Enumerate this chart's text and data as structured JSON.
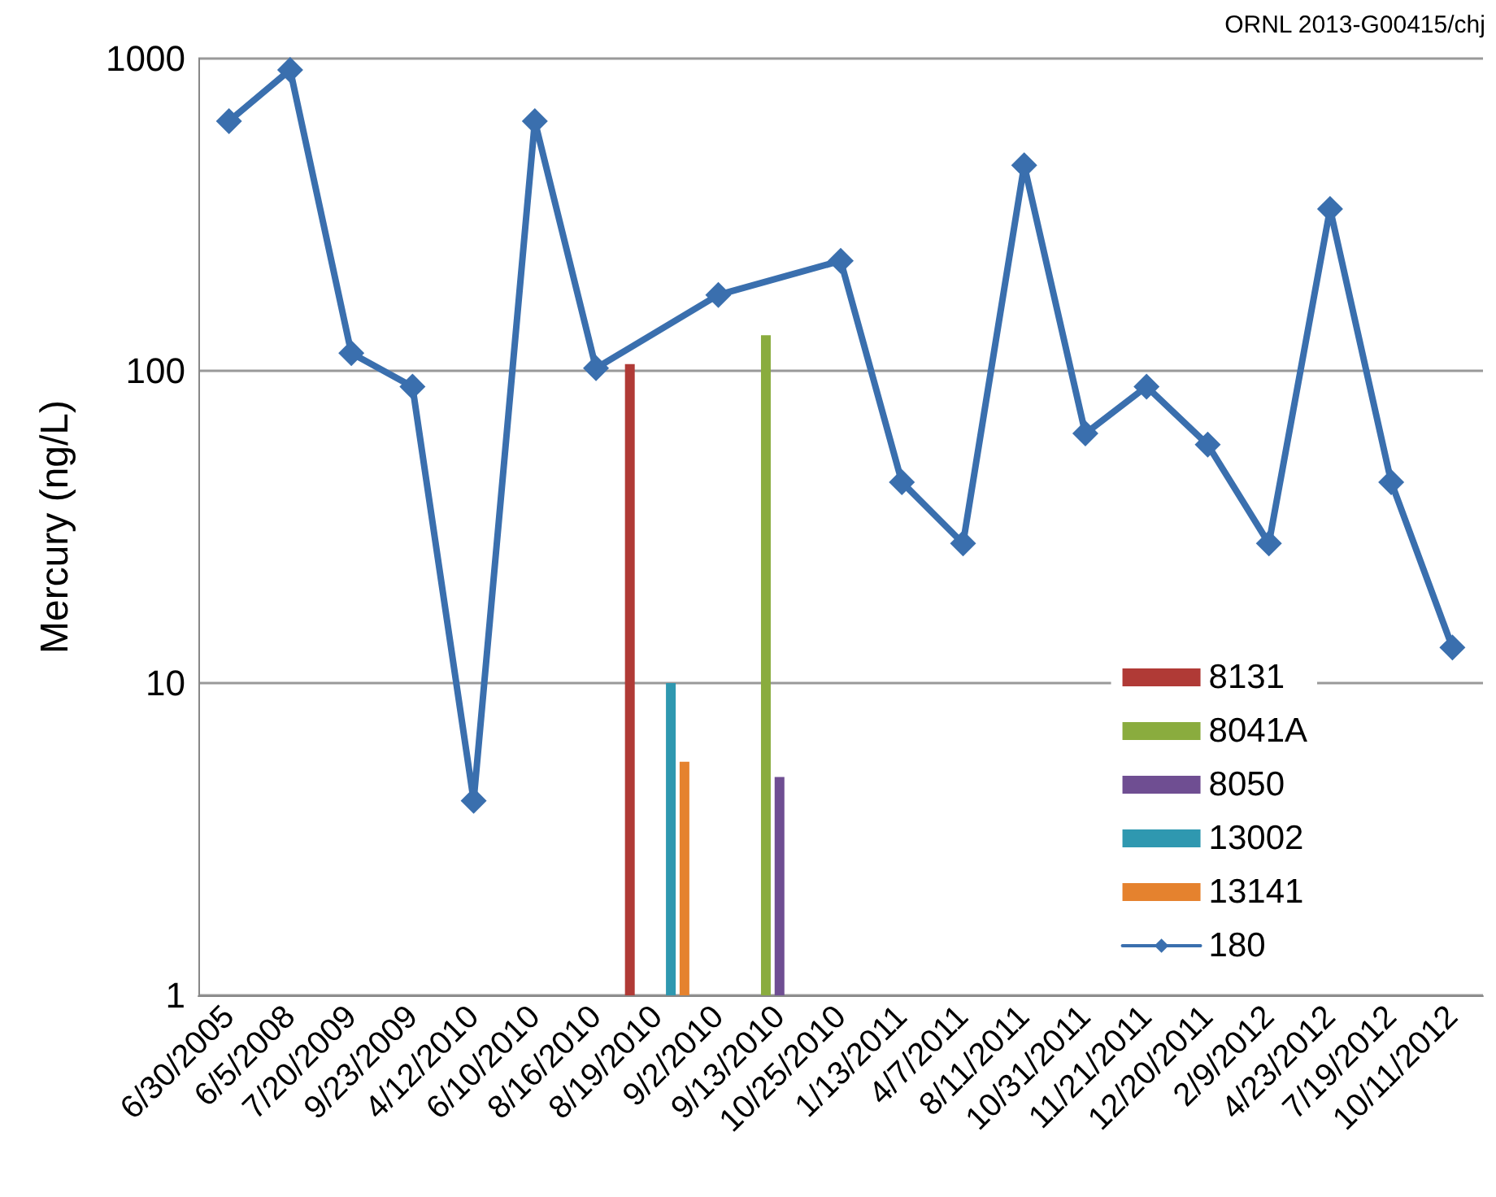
{
  "chart_data": {
    "type": "line",
    "ylabel": "Mercury (ng/L)",
    "annotations": [
      "ORNL 2013-G00415/chj"
    ],
    "categories": [
      "6/30/2005",
      "6/5/2008",
      "7/20/2009",
      "9/23/2009",
      "4/12/2010",
      "6/10/2010",
      "8/16/2010",
      "8/19/2010",
      "9/2/2010",
      "9/13/2010",
      "10/25/2010",
      "1/13/2011",
      "4/7/2011",
      "8/11/2011",
      "10/31/2011",
      "11/21/2011",
      "12/20/2011",
      "2/9/2012",
      "4/23/2012",
      "7/19/2012",
      "10/11/2012"
    ],
    "series": [
      {
        "name": "8131",
        "type": "bar",
        "color": "#b03a36",
        "values": [
          null,
          null,
          null,
          null,
          null,
          null,
          null,
          105,
          null,
          null,
          null,
          null,
          null,
          null,
          null,
          null,
          null,
          null,
          null,
          null,
          null
        ]
      },
      {
        "name": "8041A",
        "type": "bar",
        "color": "#8aac3e",
        "values": [
          null,
          null,
          null,
          null,
          null,
          null,
          null,
          null,
          null,
          130,
          null,
          null,
          null,
          null,
          null,
          null,
          null,
          null,
          null,
          null,
          null
        ]
      },
      {
        "name": "8050",
        "type": "bar",
        "color": "#6f4e92",
        "values": [
          null,
          null,
          null,
          null,
          null,
          null,
          null,
          null,
          null,
          5.0,
          null,
          null,
          null,
          null,
          null,
          null,
          null,
          null,
          null,
          null,
          null
        ]
      },
      {
        "name": "13002",
        "type": "bar",
        "color": "#2f98b0",
        "values": [
          null,
          null,
          null,
          null,
          null,
          null,
          null,
          10,
          null,
          null,
          null,
          null,
          null,
          null,
          null,
          null,
          null,
          null,
          null,
          null,
          null
        ]
      },
      {
        "name": "13141",
        "type": "bar",
        "color": "#e5822e",
        "values": [
          null,
          null,
          null,
          null,
          null,
          null,
          null,
          5.6,
          null,
          null,
          null,
          null,
          null,
          null,
          null,
          null,
          null,
          null,
          null,
          null,
          null
        ]
      },
      {
        "name": "180",
        "color": "#3a6fae",
        "values": [
          630,
          920,
          114,
          89,
          4.2,
          630,
          102,
          null,
          175,
          null,
          225,
          44,
          28,
          455,
          63,
          89,
          58,
          28,
          330,
          44,
          13
        ]
      }
    ],
    "log": true,
    "ylim": [
      1,
      1000
    ],
    "yticks": [
      1,
      10,
      100,
      1000
    ],
    "grid": "y",
    "legend": "bottom right",
    "marker": "diamond",
    "line_style": "solid"
  }
}
